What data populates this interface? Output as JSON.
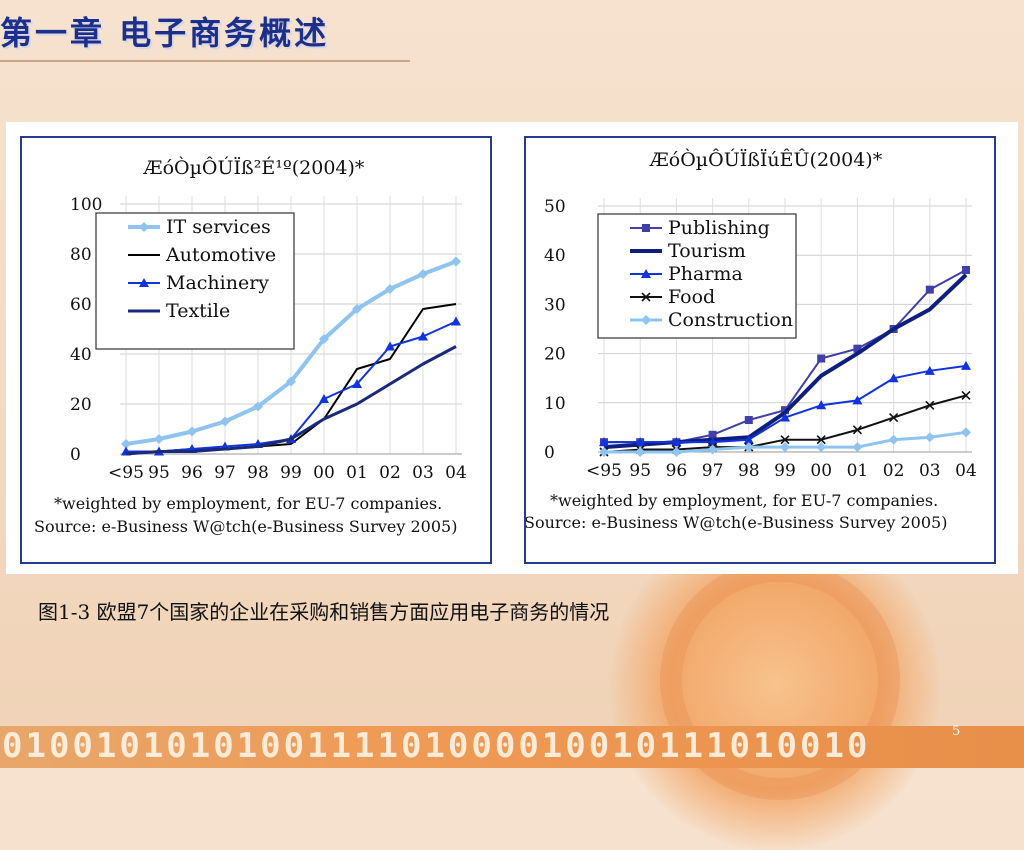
{
  "slide": {
    "title": "第一章 电子商务概述",
    "caption": "图1-3  欧盟7个国家的企业在采购和销售方面应用电子商务的情况",
    "binary_strip": "0100101010100111101000010010111010010",
    "page_number": "5"
  },
  "chart_data": [
    {
      "type": "line",
      "title": "ÆóÒµÔÚÏß²É¹º(2004)*",
      "x": [
        "<95",
        "95",
        "96",
        "97",
        "98",
        "99",
        "00",
        "01",
        "02",
        "03",
        "04"
      ],
      "ylim": [
        0,
        100
      ],
      "yticks": [
        "100",
        "80",
        "60",
        "40",
        "20",
        "0"
      ],
      "legend_position": "top-left",
      "footnote": "*weighted by employment, for EU-7 companies.",
      "source": "Source: e-Business W@tch(e-Business Survey 2005)",
      "series": [
        {
          "name": "IT services",
          "color": "#8fc3f0",
          "marker": "diamond",
          "values": [
            4,
            6,
            9,
            13,
            19,
            29,
            46,
            58,
            66,
            72,
            77
          ]
        },
        {
          "name": "Automotive",
          "color": "#000000",
          "marker": "none",
          "values": [
            1,
            1,
            2,
            2,
            3,
            4,
            14,
            34,
            38,
            58,
            60
          ]
        },
        {
          "name": "Machinery",
          "color": "#1133dd",
          "marker": "triangle",
          "values": [
            1,
            1,
            2,
            3,
            4,
            6,
            22,
            28,
            43,
            47,
            53
          ]
        },
        {
          "name": "Textile",
          "color": "#1a2a7a",
          "marker": "none",
          "values": [
            0,
            1,
            1,
            2,
            3,
            6,
            14,
            20,
            28,
            36,
            43
          ]
        }
      ]
    },
    {
      "type": "line",
      "title": "ÆóÒµÔÚÏßÏúÊÛ(2004)*",
      "x": [
        "<95",
        "95",
        "96",
        "97",
        "98",
        "99",
        "00",
        "01",
        "02",
        "03",
        "04"
      ],
      "ylim": [
        0,
        50
      ],
      "yticks": [
        "50",
        "40",
        "30",
        "20",
        "10",
        "0"
      ],
      "legend_position": "top-left",
      "footnote": "*weighted by employment, for EU-7 companies.",
      "source": "Source: e-Business W@tch(e-Business Survey 2005)",
      "series": [
        {
          "name": "Publishing",
          "color": "#4040a8",
          "marker": "square",
          "values": [
            2,
            2,
            2,
            3.5,
            6.5,
            8.5,
            19,
            21,
            25,
            33,
            37
          ]
        },
        {
          "name": "Tourism",
          "color": "#0f1f80",
          "marker": "none",
          "values": [
            1,
            1.5,
            2,
            2.5,
            3,
            8,
            15.5,
            20,
            25,
            29,
            36
          ]
        },
        {
          "name": "Pharma",
          "color": "#1133dd",
          "marker": "triangle",
          "values": [
            2,
            2,
            2,
            2,
            2.5,
            7,
            9.5,
            10.5,
            15,
            16.5,
            17.5
          ]
        },
        {
          "name": "Food",
          "color": "#111111",
          "marker": "cross",
          "values": [
            0,
            0.5,
            0.5,
            1,
            1,
            2.5,
            2.5,
            4.5,
            7,
            9.5,
            11.5
          ]
        },
        {
          "name": "Construction",
          "color": "#8fc3f0",
          "marker": "diamond",
          "values": [
            0,
            0,
            0,
            0.5,
            1,
            1,
            1,
            1,
            2.5,
            3,
            4
          ]
        }
      ]
    }
  ]
}
